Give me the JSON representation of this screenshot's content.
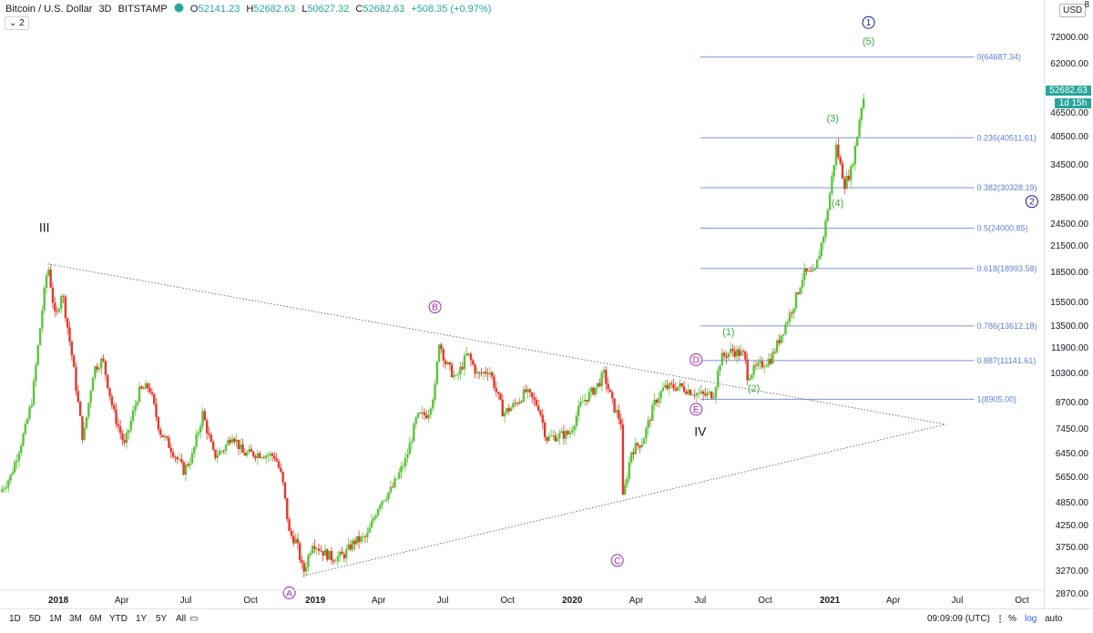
{
  "header": {
    "symbol": "Bitcoin / U.S. Dollar",
    "interval": "3D",
    "exchange": "BITSTAMP",
    "open_label": "O",
    "open": "52141.23",
    "high_label": "H",
    "high": "52682.63",
    "low_label": "L",
    "low": "50627.32",
    "close_label": "C",
    "close": "52682.63",
    "change": "+508.35 (+0.97%)",
    "legend_count": "2",
    "currency": "USD",
    "top_cut_tick": "8"
  },
  "price_axis": {
    "ticks": [
      "72000.00",
      "62000.00",
      "46500.00",
      "40500.00",
      "34500.00",
      "28500.00",
      "24500.00",
      "21500.00",
      "18500.00",
      "15500.00",
      "13500.00",
      "11900.00",
      "10300.00",
      "8700.00",
      "7450.00",
      "6450.00",
      "5650.00",
      "4850.00",
      "4250.00",
      "3750.00",
      "3270.00",
      "2870.00"
    ],
    "last_price": "52682.63",
    "countdown": "1d 15h"
  },
  "time_axis": {
    "labels": [
      "2018",
      "Apr",
      "Jul",
      "Oct",
      "2019",
      "Apr",
      "Jul",
      "Oct",
      "2020",
      "Apr",
      "Jul",
      "Oct",
      "2021",
      "Apr",
      "Jul",
      "Oct"
    ]
  },
  "toolbar": {
    "ranges": [
      "1D",
      "5D",
      "1M",
      "3M",
      "6M",
      "YTD",
      "1Y",
      "5Y",
      "All"
    ],
    "clock": "09:09:09 (UTC)",
    "percent": "%",
    "log": "log",
    "auto": "auto"
  },
  "colors": {
    "up": "#26a69a",
    "candle_up": "#5bc43b",
    "candle_down": "#e8362a",
    "fib": "#5b7fd6",
    "wave_green": "#3aa83a",
    "wave_purple": "#9c27b0",
    "wave_navy": "#1a1a8c",
    "last_price_bg": "#26a69a"
  },
  "chart_data": {
    "type": "candlestick",
    "log_scale": true,
    "x_range": [
      "2017-10-10",
      "2021-11-01"
    ],
    "y_range": [
      2650,
      90000
    ],
    "series": {
      "close_path": [
        [
          "2017-10-10",
          5200
        ],
        [
          "2017-10-25",
          5700
        ],
        [
          "2017-11-15",
          7500
        ],
        [
          "2017-11-25",
          9000
        ],
        [
          "2017-12-08",
          14500
        ],
        [
          "2017-12-17",
          19500
        ],
        [
          "2017-12-28",
          14000
        ],
        [
          "2018-01-06",
          16800
        ],
        [
          "2018-01-20",
          11500
        ],
        [
          "2018-02-05",
          7000
        ],
        [
          "2018-02-20",
          10600
        ],
        [
          "2018-03-05",
          11200
        ],
        [
          "2018-03-20",
          8300
        ],
        [
          "2018-04-05",
          6800
        ],
        [
          "2018-04-25",
          9300
        ],
        [
          "2018-05-10",
          9600
        ],
        [
          "2018-05-25",
          7400
        ],
        [
          "2018-06-10",
          6700
        ],
        [
          "2018-06-28",
          5900
        ],
        [
          "2018-07-10",
          6400
        ],
        [
          "2018-07-25",
          8200
        ],
        [
          "2018-08-10",
          6400
        ],
        [
          "2018-08-25",
          6700
        ],
        [
          "2018-09-05",
          7300
        ],
        [
          "2018-09-20",
          6500
        ],
        [
          "2018-10-15",
          6500
        ],
        [
          "2018-11-05",
          6400
        ],
        [
          "2018-11-15",
          5600
        ],
        [
          "2018-11-25",
          4100
        ],
        [
          "2018-12-05",
          3900
        ],
        [
          "2018-12-15",
          3250
        ],
        [
          "2018-12-28",
          3900
        ],
        [
          "2019-01-10",
          3700
        ],
        [
          "2019-01-25",
          3550
        ],
        [
          "2019-02-10",
          3600
        ],
        [
          "2019-02-25",
          3900
        ],
        [
          "2019-03-15",
          4000
        ],
        [
          "2019-04-02",
          4900
        ],
        [
          "2019-04-20",
          5300
        ],
        [
          "2019-05-10",
          6300
        ],
        [
          "2019-05-25",
          8000
        ],
        [
          "2019-06-10",
          8200
        ],
        [
          "2019-06-20",
          9500
        ],
        [
          "2019-06-26",
          12500
        ],
        [
          "2019-07-05",
          11000
        ],
        [
          "2019-07-20",
          10000
        ],
        [
          "2019-08-05",
          11600
        ],
        [
          "2019-08-20",
          10200
        ],
        [
          "2019-09-05",
          10600
        ],
        [
          "2019-09-25",
          8200
        ],
        [
          "2019-10-10",
          8600
        ],
        [
          "2019-10-27",
          9300
        ],
        [
          "2019-11-15",
          8500
        ],
        [
          "2019-11-25",
          7100
        ],
        [
          "2019-12-10",
          7200
        ],
        [
          "2019-12-28",
          7300
        ],
        [
          "2020-01-14",
          8700
        ],
        [
          "2020-02-05",
          9600
        ],
        [
          "2020-02-15",
          10300
        ],
        [
          "2020-02-28",
          8600
        ],
        [
          "2020-03-10",
          7800
        ],
        [
          "2020-03-13",
          5000
        ],
        [
          "2020-03-25",
          6600
        ],
        [
          "2020-04-10",
          7000
        ],
        [
          "2020-04-28",
          8800
        ],
        [
          "2020-05-10",
          9500
        ],
        [
          "2020-06-01",
          9600
        ],
        [
          "2020-06-20",
          9300
        ],
        [
          "2020-07-05",
          9100
        ],
        [
          "2020-07-20",
          9200
        ],
        [
          "2020-07-30",
          11300
        ],
        [
          "2020-08-15",
          11800
        ],
        [
          "2020-09-02",
          11500
        ],
        [
          "2020-09-05",
          10200
        ],
        [
          "2020-09-20",
          10700
        ],
        [
          "2020-10-10",
          11300
        ],
        [
          "2020-10-25",
          13100
        ],
        [
          "2020-11-10",
          15300
        ],
        [
          "2020-11-25",
          18500
        ],
        [
          "2020-12-10",
          18300
        ],
        [
          "2020-12-25",
          24000
        ],
        [
          "2021-01-05",
          33000
        ],
        [
          "2021-01-10",
          38500
        ],
        [
          "2021-01-22",
          31000
        ],
        [
          "2021-01-31",
          33500
        ],
        [
          "2021-02-08",
          40000
        ],
        [
          "2021-02-14",
          48000
        ],
        [
          "2021-02-20",
          52683
        ]
      ]
    },
    "fib_levels": [
      {
        "label": "0(64687.34)",
        "value": 64687.34
      },
      {
        "label": "0.236(40511.61)",
        "value": 40511.61
      },
      {
        "label": "0.382(30328.19)",
        "value": 30328.19
      },
      {
        "label": "0.5(24000.85)",
        "value": 24000.85
      },
      {
        "label": "0.618(18993.58)",
        "value": 18993.58
      },
      {
        "label": "0.786(13612.18)",
        "value": 13612.18
      },
      {
        "label": "0.887(11141.61)",
        "value": 11141.61
      },
      {
        "label": "1(8905.00)",
        "value": 8905.0
      }
    ],
    "fib_x_range": [
      "2020-07-01",
      "2021-07-25"
    ],
    "trendlines": [
      {
        "from": [
          "2017-12-17",
          19500
        ],
        "to": [
          "2021-06-15",
          7700
        ]
      },
      {
        "from": [
          "2018-12-15",
          3200
        ],
        "to": [
          "2021-06-15",
          7700
        ]
      }
    ],
    "wave_labels": [
      {
        "text": "III",
        "x": "2017-12-12",
        "y": 23500,
        "style": "plain"
      },
      {
        "text": "IV",
        "x": "2020-07-01",
        "y": 7200,
        "style": "plain"
      },
      {
        "text": "A",
        "x": "2018-11-25",
        "y": 2900,
        "style": "circle-purple"
      },
      {
        "text": "B",
        "x": "2019-06-20",
        "y": 15200,
        "style": "circle-purple"
      },
      {
        "text": "C",
        "x": "2020-03-05",
        "y": 3500,
        "style": "circle-purple"
      },
      {
        "text": "D",
        "x": "2020-06-25",
        "y": 11200,
        "style": "circle-purple"
      },
      {
        "text": "E",
        "x": "2020-06-25",
        "y": 8400,
        "style": "circle-purple"
      },
      {
        "text": "(1)",
        "x": "2020-08-10",
        "y": 12900,
        "style": "green"
      },
      {
        "text": "(2)",
        "x": "2020-09-15",
        "y": 9300,
        "style": "green"
      },
      {
        "text": "(3)",
        "x": "2021-01-05",
        "y": 44500,
        "style": "green"
      },
      {
        "text": "(4)",
        "x": "2021-01-12",
        "y": 27200,
        "style": "green"
      },
      {
        "text": "(5)",
        "x": "2021-02-25",
        "y": 69500,
        "style": "green"
      },
      {
        "text": "1",
        "x": "2021-02-25",
        "y": 79000,
        "style": "circle-navy"
      },
      {
        "text": "2",
        "x": "2021-10-15",
        "y": 28000,
        "style": "circle-navy"
      }
    ]
  }
}
